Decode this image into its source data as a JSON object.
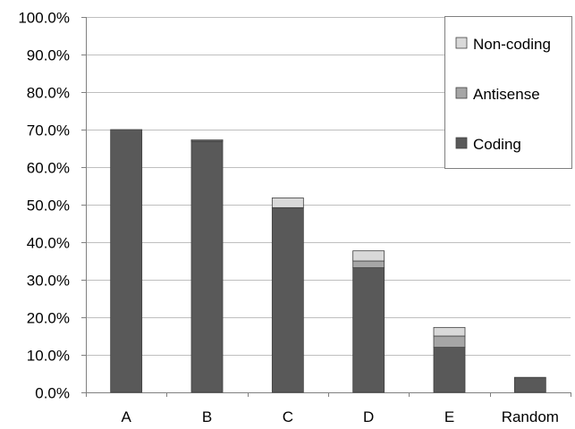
{
  "chart_data": {
    "type": "bar",
    "stacked": true,
    "categories": [
      "A",
      "B",
      "C",
      "D",
      "E",
      "Random"
    ],
    "series": [
      {
        "name": "Coding",
        "color": "#595959",
        "values": [
          70.0,
          66.8,
          49.2,
          33.2,
          12.0,
          4.0
        ]
      },
      {
        "name": "Antisense",
        "color": "#a6a6a6",
        "values": [
          0.0,
          0.2,
          0.0,
          1.8,
          3.0,
          0.0
        ]
      },
      {
        "name": "Non-coding",
        "color": "#d9d9d9",
        "values": [
          0.0,
          0.3,
          2.6,
          2.7,
          2.3,
          0.0
        ]
      }
    ],
    "legend_order": [
      "Non-coding",
      "Antisense",
      "Coding"
    ],
    "y_ticks": [
      "0.0%",
      "10.0%",
      "20.0%",
      "30.0%",
      "40.0%",
      "50.0%",
      "60.0%",
      "70.0%",
      "80.0%",
      "90.0%",
      "100.0%"
    ],
    "ylim": [
      0,
      100
    ],
    "grid": true,
    "legend_position": "top-right",
    "title": "",
    "xlabel": "",
    "ylabel": ""
  }
}
